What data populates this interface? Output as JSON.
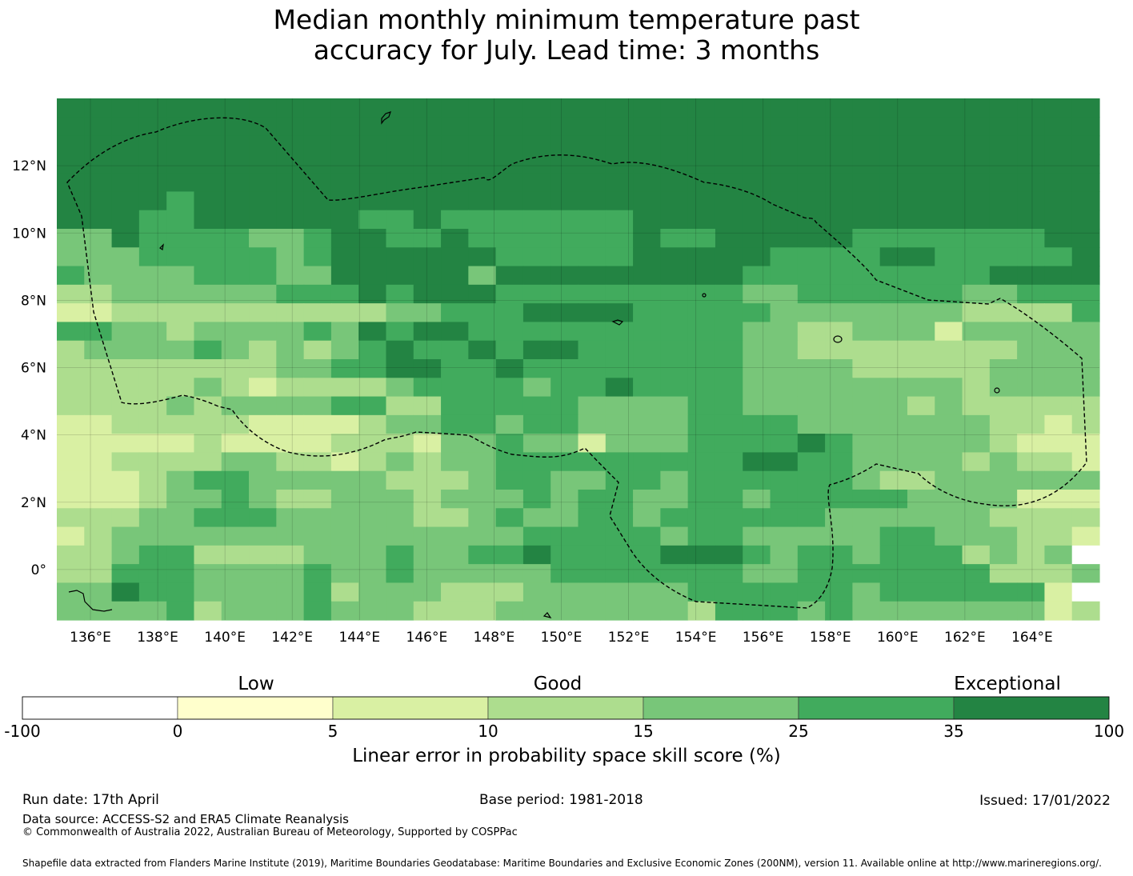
{
  "title": {
    "line1": "Median monthly minimum temperature past",
    "line2": "accuracy for July. Lead time: 3 months"
  },
  "map": {
    "lon_range": [
      135,
      166
    ],
    "lat_range": [
      -1.5,
      14
    ],
    "lon_ticks": [
      "136°E",
      "138°E",
      "140°E",
      "142°E",
      "144°E",
      "146°E",
      "148°E",
      "150°E",
      "152°E",
      "154°E",
      "156°E",
      "158°E",
      "160°E",
      "162°E",
      "164°E"
    ],
    "lat_ticks": [
      "12°N",
      "10°N",
      "8°N",
      "6°N",
      "4°N",
      "2°N",
      "0°"
    ],
    "cell_deg": 0.833,
    "description_layers": [
      "skill-score-grid",
      "eez-boundary-dashed",
      "coastlines",
      "graticule"
    ]
  },
  "colorbar": {
    "category_labels": [
      "Low",
      "Good",
      "Exceptional"
    ],
    "tick_labels": [
      "-100",
      "0",
      "5",
      "10",
      "15",
      "25",
      "35",
      "100"
    ],
    "colors": [
      "#ffffff",
      "#ffffcc",
      "#d9f0a3",
      "#addd8e",
      "#78c679",
      "#41ab5d",
      "#238443"
    ],
    "label": "Linear error in probability space skill score (%)"
  },
  "footer": {
    "run_date": "Run date: 17th April",
    "base_period": "Base period: 1981-2018",
    "issued": "Issued: 17/01/2022",
    "data_source": "Data source: ACCESS-S2 and ERA5 Climate Reanalysis",
    "copyright": "© Commonwealth of Australia 2022, Australian Bureau of Meteorology, Supported by COSPPac",
    "shapefile": "Shapefile data extracted from Flanders Marine Institute (2019), Maritime Boundaries Geodatabase: Maritime Boundaries and Exclusive Economic Zones (200NM), version 11. Available online at http://www.marineregions.org/."
  }
}
